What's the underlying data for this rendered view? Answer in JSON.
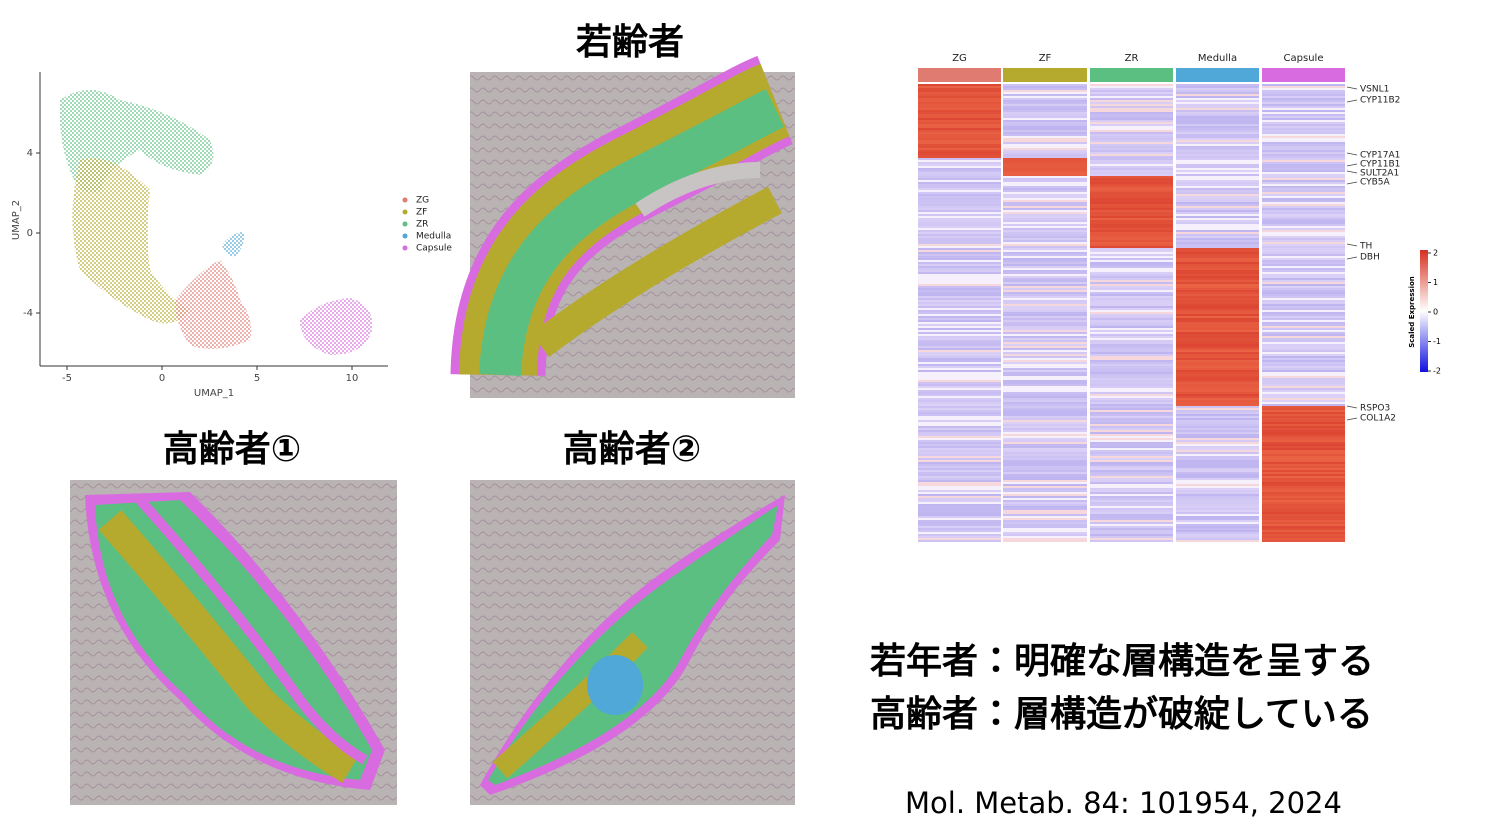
{
  "umap": {
    "xlabel": "UMAP_1",
    "ylabel": "UMAP_2",
    "xticks": [
      -5,
      0,
      5,
      10
    ],
    "yticks": [
      -4,
      0,
      4
    ],
    "legend": [
      {
        "name": "ZG",
        "color": "#e07b72"
      },
      {
        "name": "ZF",
        "color": "#b5aa2e"
      },
      {
        "name": "ZR",
        "color": "#5bbf82"
      },
      {
        "name": "Medulla",
        "color": "#4fa8d8"
      },
      {
        "name": "Capsule",
        "color": "#d96be0"
      }
    ]
  },
  "panels": [
    {
      "title": "若齢者"
    },
    {
      "title": "高齢者①"
    },
    {
      "title": "高齢者②"
    }
  ],
  "heatmap": {
    "columns": [
      "ZG",
      "ZF",
      "ZR",
      "Medulla",
      "Capsule"
    ],
    "genes": [
      "VSNL1",
      "CYP11B2",
      "CYP17A1",
      "CYP11B1",
      "SULT2A1",
      "CYB5A",
      "TH",
      "DBH",
      "RSPO3",
      "COL1A2"
    ],
    "colorbar_label": "Scaled Expression",
    "colorbar_ticks": [
      2,
      1,
      0,
      -1,
      -2
    ]
  },
  "notes": [
    "若年者：明確な層構造を呈する",
    "高齢者：層構造が破綻している"
  ],
  "citation": "Mol. Metab. 84: 101954, 2024"
}
